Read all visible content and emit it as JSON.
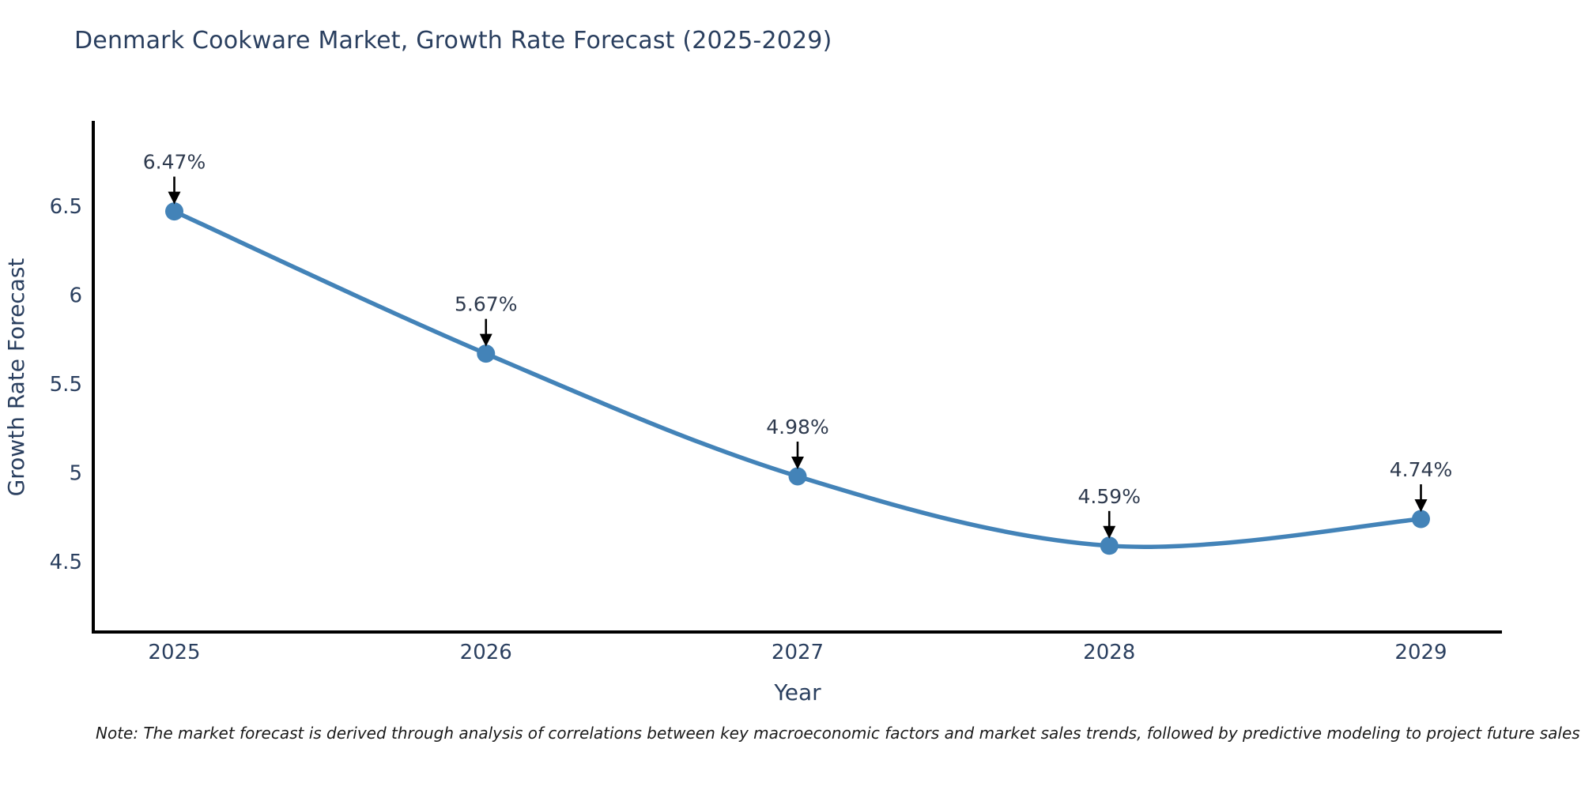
{
  "page": {
    "note": "Note: The market forecast is derived through analysis of correlations between key macroeconomic factors and market sales trends, followed by predictive modeling to project future sales"
  },
  "chart_data": {
    "type": "line",
    "title": "Denmark Cookware Market, Growth Rate Forecast (2025-2029)",
    "xlabel": "Year",
    "ylabel": "Growth Rate Forecast",
    "x": [
      2025,
      2026,
      2027,
      2028,
      2029
    ],
    "series": [
      {
        "name": "Growth Rate Forecast",
        "values": [
          6.47,
          5.67,
          4.98,
          4.59,
          4.74
        ]
      }
    ],
    "point_labels": [
      "6.47%",
      "5.67%",
      "4.98%",
      "4.59%",
      "4.74%"
    ],
    "x_tick_labels": [
      "2025",
      "2026",
      "2027",
      "2028",
      "2029"
    ],
    "y_ticks": [
      4.5,
      5,
      5.5,
      6,
      6.5
    ],
    "y_tick_labels": [
      "4.5",
      "5",
      "5.5",
      "6",
      "6.5"
    ],
    "xlim": [
      2024.74,
      2029.26
    ],
    "ylim": [
      4.105,
      6.97
    ],
    "grid": false,
    "legend": false,
    "line_smoothing": "spline",
    "line_color": "#4383b8",
    "marker_color": "#4383b8",
    "annotation_arrow_color": "#000000",
    "text_color": "#2a3f5f",
    "axis_color": "#000000"
  }
}
